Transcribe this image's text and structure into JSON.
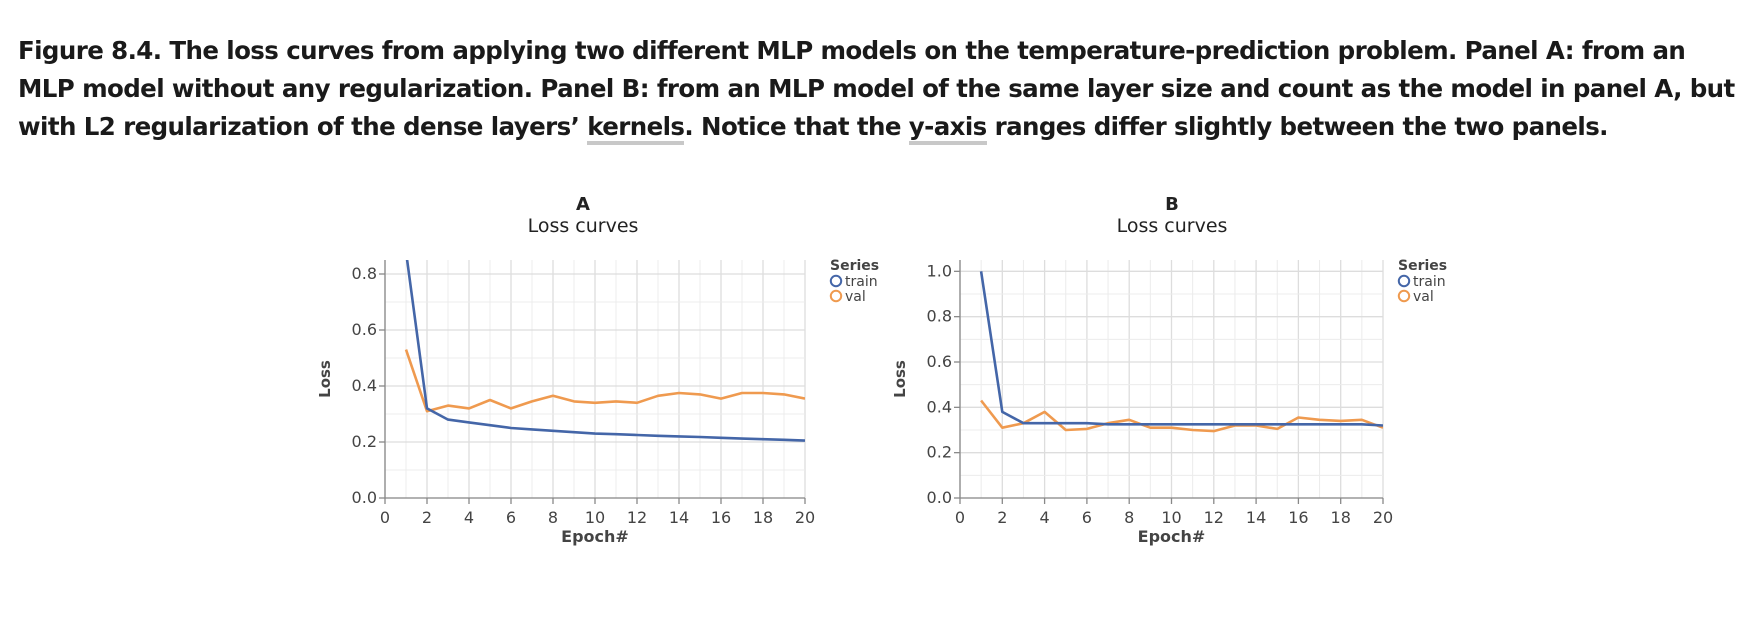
{
  "caption": {
    "part1": "Figure 8.4. The loss curves from applying two different MLP models on the temperature-prediction problem. Panel A: from an MLP model without any regularization. Panel B: from an MLP model of the same layer size and count as the model in panel A, but with L2 regularization of the dense layers’ ",
    "link1": "kernels",
    "part2": ". Notice that the ",
    "link2": "y-axis",
    "part3": " ranges differ slightly between the two panels."
  },
  "colors": {
    "train": "#4466a8",
    "val": "#ef9a4f",
    "grid": "#dddddd",
    "axis": "#888888",
    "text": "#444444"
  },
  "chart_data": [
    {
      "type": "line",
      "panel_label": "A",
      "title": "Loss curves",
      "xlabel": "Epoch#",
      "ylabel": "Loss",
      "xlim": [
        0,
        20
      ],
      "ylim": [
        0,
        0.85
      ],
      "xticks": [
        0,
        2,
        4,
        6,
        8,
        10,
        12,
        14,
        16,
        18,
        20
      ],
      "yticks": [
        0.0,
        0.2,
        0.4,
        0.6,
        0.8
      ],
      "ytick_labels": [
        "0.0",
        "0.2",
        "0.4",
        "0.6",
        "0.8"
      ],
      "grid": true,
      "legend_title": "Series",
      "legend_position": "top-right",
      "series": [
        {
          "name": "train",
          "x": [
            1,
            2,
            3,
            4,
            5,
            6,
            7,
            8,
            9,
            10,
            11,
            12,
            13,
            14,
            15,
            16,
            17,
            18,
            19,
            20
          ],
          "values": [
            0.88,
            0.32,
            0.28,
            0.27,
            0.26,
            0.25,
            0.245,
            0.24,
            0.235,
            0.23,
            0.228,
            0.225,
            0.222,
            0.22,
            0.218,
            0.215,
            0.212,
            0.21,
            0.208,
            0.205
          ]
        },
        {
          "name": "val",
          "x": [
            1,
            2,
            3,
            4,
            5,
            6,
            7,
            8,
            9,
            10,
            11,
            12,
            13,
            14,
            15,
            16,
            17,
            18,
            19,
            20
          ],
          "values": [
            0.53,
            0.31,
            0.33,
            0.32,
            0.35,
            0.32,
            0.345,
            0.365,
            0.345,
            0.34,
            0.345,
            0.34,
            0.365,
            0.375,
            0.37,
            0.355,
            0.375,
            0.375,
            0.37,
            0.355
          ]
        }
      ]
    },
    {
      "type": "line",
      "panel_label": "B",
      "title": "Loss curves",
      "xlabel": "Epoch#",
      "ylabel": "Loss",
      "xlim": [
        0,
        20
      ],
      "ylim": [
        0,
        1.05
      ],
      "xticks": [
        0,
        2,
        4,
        6,
        8,
        10,
        12,
        14,
        16,
        18,
        20
      ],
      "yticks": [
        0.0,
        0.2,
        0.4,
        0.6,
        0.8,
        1.0
      ],
      "ytick_labels": [
        "0.0",
        "0.2",
        "0.4",
        "0.6",
        "0.8",
        "1.0"
      ],
      "grid": true,
      "legend_title": "Series",
      "legend_position": "top-right",
      "series": [
        {
          "name": "train",
          "x": [
            1,
            2,
            3,
            4,
            5,
            6,
            7,
            8,
            9,
            10,
            11,
            12,
            13,
            14,
            15,
            16,
            17,
            18,
            19,
            20
          ],
          "values": [
            1.0,
            0.38,
            0.33,
            0.33,
            0.33,
            0.33,
            0.325,
            0.325,
            0.325,
            0.325,
            0.325,
            0.325,
            0.325,
            0.325,
            0.325,
            0.325,
            0.325,
            0.325,
            0.325,
            0.32
          ]
        },
        {
          "name": "val",
          "x": [
            1,
            2,
            3,
            4,
            5,
            6,
            7,
            8,
            9,
            10,
            11,
            12,
            13,
            14,
            15,
            16,
            17,
            18,
            19,
            20
          ],
          "values": [
            0.43,
            0.31,
            0.33,
            0.38,
            0.3,
            0.305,
            0.33,
            0.345,
            0.31,
            0.31,
            0.3,
            0.295,
            0.32,
            0.32,
            0.305,
            0.355,
            0.345,
            0.34,
            0.345,
            0.31
          ]
        }
      ]
    }
  ]
}
